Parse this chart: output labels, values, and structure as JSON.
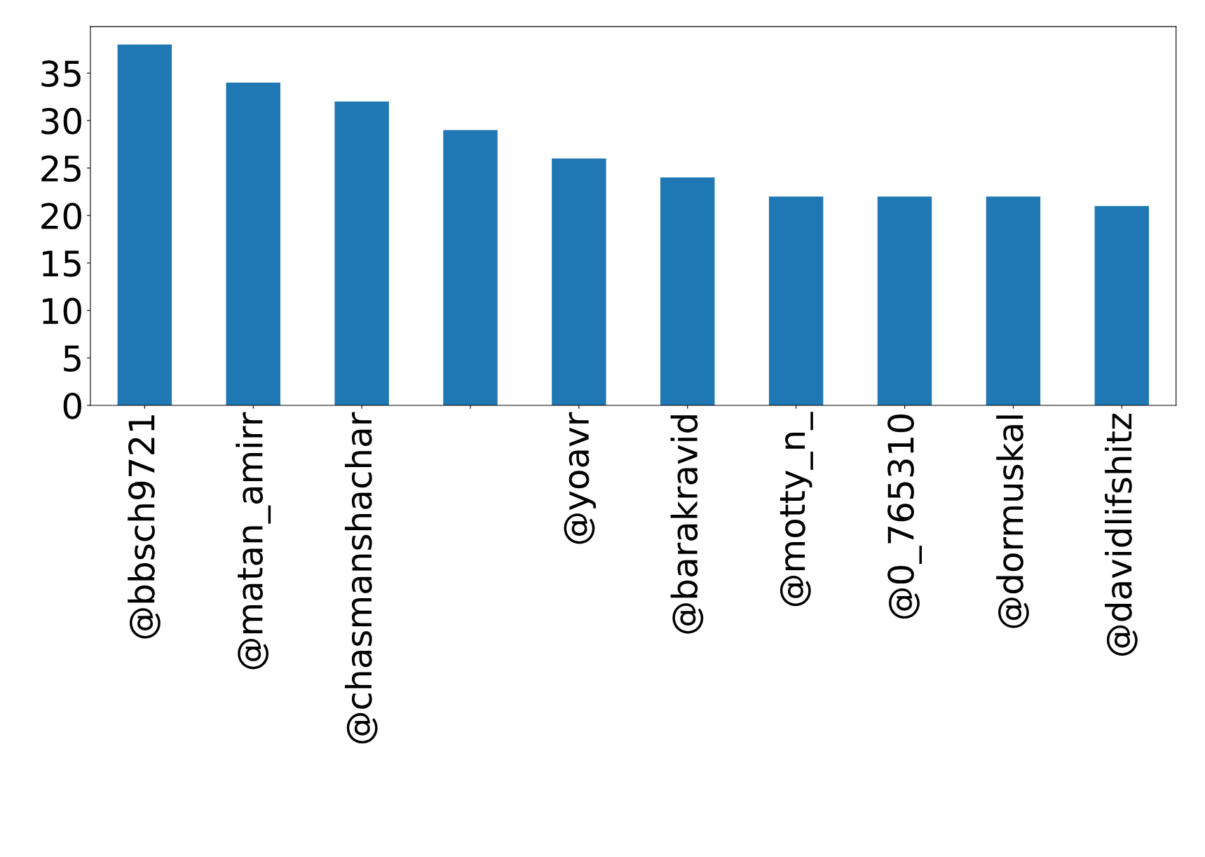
{
  "chart_data": {
    "type": "bar",
    "categories": [
      "@bbsch9721",
      "@matan_amirr",
      "@chasmanshachar",
      null,
      "@yoavr",
      "@barakravid",
      "@motty_n_",
      "@0_765310",
      "@dormuskal",
      "@davidlifshitz"
    ],
    "values": [
      38,
      34,
      32,
      29,
      26,
      24,
      22,
      22,
      22,
      21
    ],
    "color": "#1f77b4",
    "ylim": [
      0,
      39.9
    ],
    "yticks": [
      0,
      5,
      10,
      15,
      20,
      25,
      30,
      35
    ],
    "grid": false,
    "legend": false
  }
}
